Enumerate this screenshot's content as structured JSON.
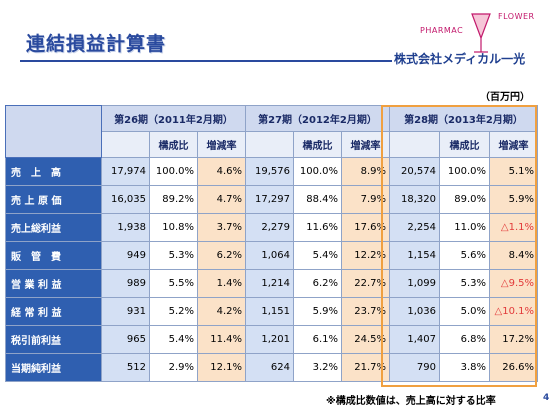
{
  "title": "連結損益計算書",
  "logo": {
    "pharmac": "PHARMAC",
    "flower": "FLOWER",
    "company": "株式会社メディカル一光"
  },
  "unit": "（百万円）",
  "columns": {
    "periods": [
      "第26期（2011年2月期）",
      "第27期（2012年2月期）",
      "第28期（2013年2月期）"
    ],
    "ratio_label": "構成比",
    "change_label": "増減率"
  },
  "rows": [
    {
      "label": "売　上　高",
      "cells": [
        "17,974",
        "100.0%",
        "4.6%",
        "19,576",
        "100.0%",
        "8.9%",
        "20,574",
        "100.0%",
        "5.1%"
      ]
    },
    {
      "label": "売 上 原 価",
      "cells": [
        "16,035",
        "89.2%",
        "4.7%",
        "17,297",
        "88.4%",
        "7.9%",
        "18,320",
        "89.0%",
        "5.9%"
      ]
    },
    {
      "label": "売上総利益",
      "cells": [
        "1,938",
        "10.8%",
        "3.7%",
        "2,279",
        "11.6%",
        "17.6%",
        "2,254",
        "11.0%",
        "△1.1%"
      ]
    },
    {
      "label": "販　管　費",
      "cells": [
        "949",
        "5.3%",
        "6.2%",
        "1,064",
        "5.4%",
        "12.2%",
        "1,154",
        "5.6%",
        "8.4%"
      ]
    },
    {
      "label": "営 業 利 益",
      "cells": [
        "989",
        "5.5%",
        "1.4%",
        "1,214",
        "6.2%",
        "22.7%",
        "1,099",
        "5.3%",
        "△9.5%"
      ]
    },
    {
      "label": "経 常 利 益",
      "cells": [
        "931",
        "5.2%",
        "4.2%",
        "1,151",
        "5.9%",
        "23.7%",
        "1,036",
        "5.0%",
        "△10.1%"
      ]
    },
    {
      "label": "税引前利益",
      "cells": [
        "965",
        "5.4%",
        "11.4%",
        "1,201",
        "6.1%",
        "24.5%",
        "1,407",
        "6.8%",
        "17.2%"
      ]
    },
    {
      "label": "当期純利益",
      "cells": [
        "512",
        "2.9%",
        "12.1%",
        "624",
        "3.2%",
        "21.7%",
        "790",
        "3.8%",
        "26.6%"
      ]
    }
  ],
  "footnote": "※構成比数値は、売上高に対する比率",
  "page_number": "4",
  "colors": {
    "title": "#2a4a9e",
    "row_label_bg": "#2f5fb0",
    "amount_bg": "#d4e0f4",
    "change_bg": "#fbe2c8",
    "negative": "#e23a3a",
    "highlight_border": "#f0a040"
  }
}
